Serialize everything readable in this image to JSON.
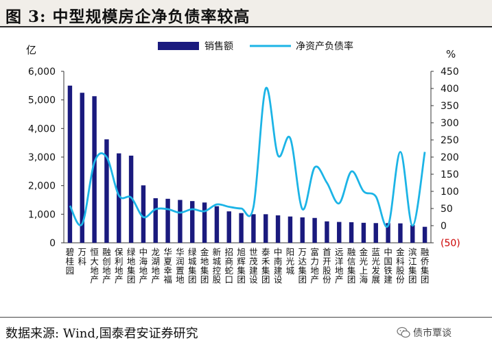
{
  "title": "图 3:  中型规模房企净负债率较高",
  "source": "数据来源:  Wind,国泰君安证券研究",
  "watermark": "债市覃谈",
  "colors": {
    "bar": "#1a1a7e",
    "line": "#1cb4e6",
    "negative_tick": "#cc0000"
  },
  "chart_data": {
    "type": "bar",
    "categories": [
      "碧桂园",
      "万科",
      "恒大地产",
      "融创地产",
      "保利地产",
      "绿地集团",
      "中海地产",
      "龙湖地产",
      "华夏幸福",
      "华润置地",
      "绿城集团",
      "金地集团",
      "新城控股",
      "招商蛇口",
      "旭辉集团",
      "世茂建设",
      "泰禾集团",
      "中南建设",
      "阳光城",
      "万达集团",
      "富力地产",
      "首开股份",
      "远洋地产",
      "融信集团",
      "金光上海",
      "蓝光发展",
      "中国铁建",
      "金科股份",
      "滨江集团",
      "融侨集团"
    ],
    "series": [
      {
        "name": "销售额",
        "type": "bar",
        "axis": "left",
        "values": [
          5500,
          5250,
          5130,
          3620,
          3130,
          3050,
          2010,
          1560,
          1540,
          1500,
          1460,
          1410,
          1280,
          1100,
          1040,
          1000,
          1000,
          960,
          920,
          890,
          870,
          750,
          730,
          720,
          700,
          690,
          690,
          680,
          620,
          560
        ]
      },
      {
        "name": "净资产负债率",
        "type": "line",
        "axis": "right",
        "values": [
          58,
          5,
          185,
          200,
          88,
          82,
          25,
          48,
          48,
          38,
          48,
          42,
          62,
          55,
          50,
          55,
          400,
          205,
          255,
          48,
          170,
          125,
          65,
          158,
          100,
          85,
          0,
          215,
          0,
          215
        ]
      }
    ],
    "y_left": {
      "label": "亿",
      "ylim": [
        0,
        6000
      ],
      "ticks": [
        "0",
        "1,000",
        "2,000",
        "3,000",
        "4,000",
        "5,000",
        "6,000"
      ]
    },
    "y_right": {
      "label": "%",
      "ylim": [
        -50,
        450
      ],
      "ticks": [
        "(50)",
        "0",
        "50",
        "100",
        "150",
        "200",
        "250",
        "300",
        "350",
        "400",
        "450"
      ]
    },
    "legend": "top-center",
    "grid": false
  }
}
